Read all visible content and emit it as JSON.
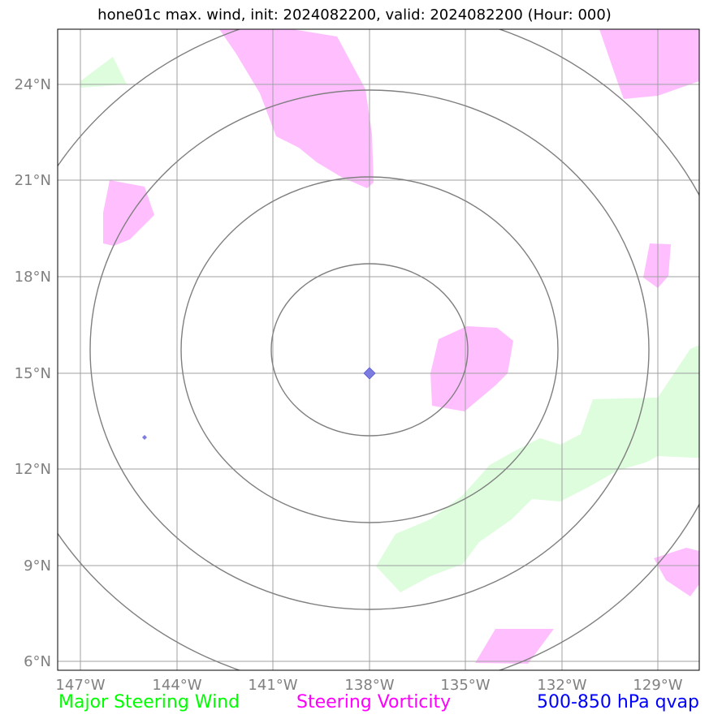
{
  "title": "hone01c max. wind, init: 2024082200, valid: 2024082200 (Hour: 000)",
  "colors": {
    "steering_wind": "#00ff00",
    "steering_vorticity": "#ff00ff",
    "qvap": "#0000ff",
    "grid": "#a0a0a0",
    "range_rings": "#7f7f7f",
    "tick_text": "#808080"
  },
  "axes": {
    "lon_ticks": [
      "147°W",
      "144°W",
      "141°W",
      "138°W",
      "135°W",
      "132°W",
      "129°W"
    ],
    "lat_ticks": [
      "24°N",
      "21°N",
      "18°N",
      "15°N",
      "12°N",
      "9°N",
      "6°N"
    ]
  },
  "storm_center": {
    "lat": 15,
    "lon": -138
  },
  "legend": {
    "wind": "Major Steering Wind",
    "vorticity": "Steering Vorticity",
    "qvap": "500-850 hPa qvap"
  }
}
